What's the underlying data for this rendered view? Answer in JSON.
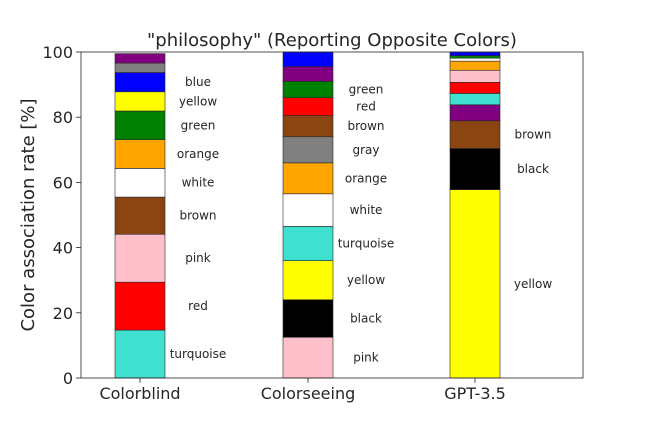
{
  "chart_data": {
    "type": "bar",
    "stacked": true,
    "title": "\"philosophy\" (Reporting Opposite Colors)",
    "xlabel": "",
    "ylabel": "Color association rate [%]",
    "ylim": [
      0,
      100
    ],
    "yticks": [
      0,
      20,
      40,
      60,
      80,
      100
    ],
    "grid": false,
    "legend": "none",
    "categories": [
      "Colorblind",
      "Colorseeing",
      "GPT-3.5"
    ],
    "bars": [
      {
        "category": "Colorblind",
        "segments": [
          {
            "name": "turquoise",
            "value": 14.7,
            "color": "#40e0d0",
            "labeled": true
          },
          {
            "name": "red",
            "value": 14.7,
            "color": "#ff0000",
            "labeled": true
          },
          {
            "name": "pink",
            "value": 14.7,
            "color": "#ffc0cb",
            "labeled": true
          },
          {
            "name": "brown",
            "value": 11.4,
            "color": "#8b4513",
            "labeled": true
          },
          {
            "name": "white",
            "value": 8.8,
            "color": "#ffffff",
            "labeled": true
          },
          {
            "name": "orange",
            "value": 8.8,
            "color": "#ffa500",
            "labeled": true
          },
          {
            "name": "green",
            "value": 8.8,
            "color": "#008000",
            "labeled": true
          },
          {
            "name": "yellow",
            "value": 5.9,
            "color": "#ffff00",
            "labeled": true
          },
          {
            "name": "blue",
            "value": 5.9,
            "color": "#0000ff",
            "labeled": true
          },
          {
            "name": "gray",
            "value": 2.9,
            "color": "#808080",
            "labeled": false
          },
          {
            "name": "purple",
            "value": 2.9,
            "color": "#800080",
            "labeled": false
          }
        ]
      },
      {
        "category": "Colorseeing",
        "segments": [
          {
            "name": "pink",
            "value": 12.5,
            "color": "#ffc0cb",
            "labeled": true
          },
          {
            "name": "black",
            "value": 11.5,
            "color": "#000000",
            "labeled": true
          },
          {
            "name": "yellow",
            "value": 12.0,
            "color": "#ffff00",
            "labeled": true
          },
          {
            "name": "turquoise",
            "value": 10.5,
            "color": "#40e0d0",
            "labeled": true
          },
          {
            "name": "white",
            "value": 10.0,
            "color": "#ffffff",
            "labeled": true
          },
          {
            "name": "orange",
            "value": 9.5,
            "color": "#ffa500",
            "labeled": true
          },
          {
            "name": "gray",
            "value": 8.0,
            "color": "#808080",
            "labeled": true
          },
          {
            "name": "brown",
            "value": 6.5,
            "color": "#8b4513",
            "labeled": true
          },
          {
            "name": "red",
            "value": 5.5,
            "color": "#ff0000",
            "labeled": true
          },
          {
            "name": "green",
            "value": 5.0,
            "color": "#008000",
            "labeled": true
          },
          {
            "name": "purple",
            "value": 4.5,
            "color": "#800080",
            "labeled": false
          },
          {
            "name": "blue",
            "value": 4.5,
            "color": "#0000ff",
            "labeled": false
          }
        ]
      },
      {
        "category": "GPT-3.5",
        "segments": [
          {
            "name": "yellow",
            "value": 57.8,
            "color": "#ffff00",
            "labeled": true
          },
          {
            "name": "black",
            "value": 12.6,
            "color": "#000000",
            "labeled": true
          },
          {
            "name": "brown",
            "value": 8.5,
            "color": "#8b4513",
            "labeled": true
          },
          {
            "name": "purple",
            "value": 4.9,
            "color": "#800080",
            "labeled": false
          },
          {
            "name": "turquoise",
            "value": 3.5,
            "color": "#40e0d0",
            "labeled": false
          },
          {
            "name": "red",
            "value": 3.4,
            "color": "#ff0000",
            "labeled": false
          },
          {
            "name": "pink",
            "value": 3.7,
            "color": "#ffc0cb",
            "labeled": false
          },
          {
            "name": "orange",
            "value": 2.8,
            "color": "#ffa500",
            "labeled": false
          },
          {
            "name": "white",
            "value": 0.9,
            "color": "#ffffff",
            "labeled": false
          },
          {
            "name": "green",
            "value": 0.8,
            "color": "#008000",
            "labeled": false
          },
          {
            "name": "blue",
            "value": 1.1,
            "color": "#0000ff",
            "labeled": false
          }
        ]
      }
    ]
  }
}
